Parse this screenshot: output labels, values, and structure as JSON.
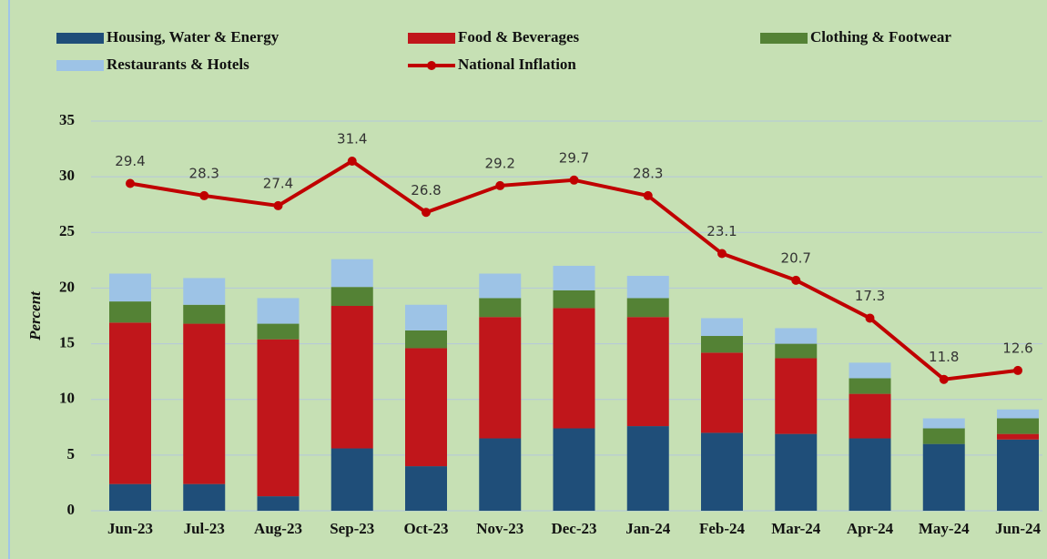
{
  "chart_data": {
    "type": "bar+line",
    "y_label": "Percent",
    "categories": [
      "Jun-23",
      "Jul-23",
      "Aug-23",
      "Sep-23",
      "Oct-23",
      "Nov-23",
      "Dec-23",
      "Jan-24",
      "Feb-24",
      "Mar-24",
      "Apr-24",
      "May-24",
      "Jun-24"
    ],
    "ylim": [
      0,
      35
    ],
    "yticks": [
      0,
      5,
      10,
      15,
      20,
      25,
      30,
      35
    ],
    "grid": true,
    "series": [
      {
        "name": "Housing, Water & Energy",
        "color": "#1f4e79",
        "type": "bar",
        "values": [
          2.4,
          2.4,
          1.3,
          5.6,
          4.0,
          6.5,
          7.4,
          7.6,
          7.0,
          6.9,
          6.5,
          6.0,
          6.4
        ]
      },
      {
        "name": "Food & Beverages",
        "color": "#c0161b",
        "type": "bar",
        "values": [
          14.5,
          14.4,
          14.1,
          12.8,
          10.6,
          10.9,
          10.8,
          9.8,
          7.2,
          6.8,
          4.0,
          0,
          0.5
        ]
      },
      {
        "name": "Clothing & Footwear",
        "color": "#548235",
        "type": "bar",
        "values": [
          1.9,
          1.7,
          1.4,
          1.7,
          1.6,
          1.7,
          1.6,
          1.7,
          1.5,
          1.3,
          1.4,
          1.4,
          1.4
        ]
      },
      {
        "name": "Restaurants & Hotels",
        "color": "#9dc3e6",
        "type": "bar",
        "values": [
          2.5,
          2.4,
          2.3,
          2.5,
          2.3,
          2.2,
          2.2,
          2.0,
          1.6,
          1.4,
          1.4,
          0.9,
          0.8
        ]
      },
      {
        "name": "National Inflation",
        "color": "#c00000",
        "type": "line",
        "values": [
          29.4,
          28.3,
          27.4,
          31.4,
          26.8,
          29.2,
          29.7,
          28.3,
          23.1,
          20.7,
          17.3,
          11.8,
          12.6
        ]
      }
    ]
  }
}
